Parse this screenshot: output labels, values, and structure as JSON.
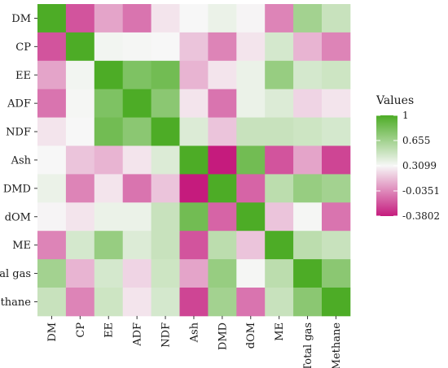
{
  "chart_data": {
    "type": "heatmap",
    "x_categories": [
      "DM",
      "CP",
      "EE",
      "ADF",
      "NDF",
      "Ash",
      "DMD",
      "dOM",
      "ME",
      "Total gas",
      "Methane"
    ],
    "y_categories": [
      "DM",
      "CP",
      "EE",
      "ADF",
      "NDF",
      "Ash",
      "DMD",
      "dOM",
      "ME",
      "Total gas",
      "Methane"
    ],
    "values": [
      [
        1.0,
        -0.2,
        0.05,
        -0.1,
        0.25,
        0.31,
        0.36,
        0.3,
        -0.05,
        0.65,
        0.5
      ],
      [
        -0.2,
        1.0,
        0.33,
        0.32,
        0.31,
        0.15,
        -0.05,
        0.25,
        0.45,
        0.1,
        -0.05
      ],
      [
        0.05,
        0.33,
        1.0,
        0.8,
        0.85,
        0.1,
        0.25,
        0.36,
        0.7,
        0.45,
        0.48
      ],
      [
        -0.1,
        0.32,
        0.8,
        1.0,
        0.75,
        0.25,
        -0.1,
        0.36,
        0.42,
        0.2,
        0.25
      ],
      [
        0.25,
        0.31,
        0.85,
        0.75,
        1.0,
        0.42,
        0.15,
        0.5,
        0.5,
        0.48,
        0.45
      ],
      [
        0.31,
        0.15,
        0.1,
        0.25,
        0.42,
        1.0,
        -0.38,
        0.85,
        -0.2,
        0.05,
        -0.25
      ],
      [
        0.36,
        -0.05,
        0.25,
        -0.1,
        0.15,
        -0.38,
        1.0,
        -0.15,
        0.55,
        0.7,
        0.65
      ],
      [
        0.3,
        0.25,
        0.36,
        0.36,
        0.5,
        0.85,
        -0.15,
        1.0,
        0.15,
        0.32,
        -0.1
      ],
      [
        -0.05,
        0.45,
        0.7,
        0.42,
        0.5,
        -0.2,
        0.55,
        0.15,
        1.0,
        0.55,
        0.5
      ],
      [
        0.65,
        0.1,
        0.45,
        0.2,
        0.48,
        0.05,
        0.7,
        0.32,
        0.55,
        1.0,
        0.75
      ],
      [
        0.5,
        -0.05,
        0.48,
        0.25,
        0.45,
        -0.25,
        0.65,
        -0.1,
        0.5,
        0.75,
        1.0
      ]
    ],
    "legend": {
      "title": "Values",
      "ticks": [
        "1",
        "0.655",
        "0.3099",
        "-0.0351",
        "-0.3802"
      ],
      "tick_values": [
        1,
        0.655,
        0.3099,
        -0.0351,
        -0.3802
      ],
      "range": [
        -0.3802,
        1
      ],
      "placement": "right"
    },
    "colors": {
      "low": "#c51b7d",
      "mid": "#f7f7f7",
      "high": "#4dac26"
    },
    "x_label_rotation": "vertical"
  }
}
